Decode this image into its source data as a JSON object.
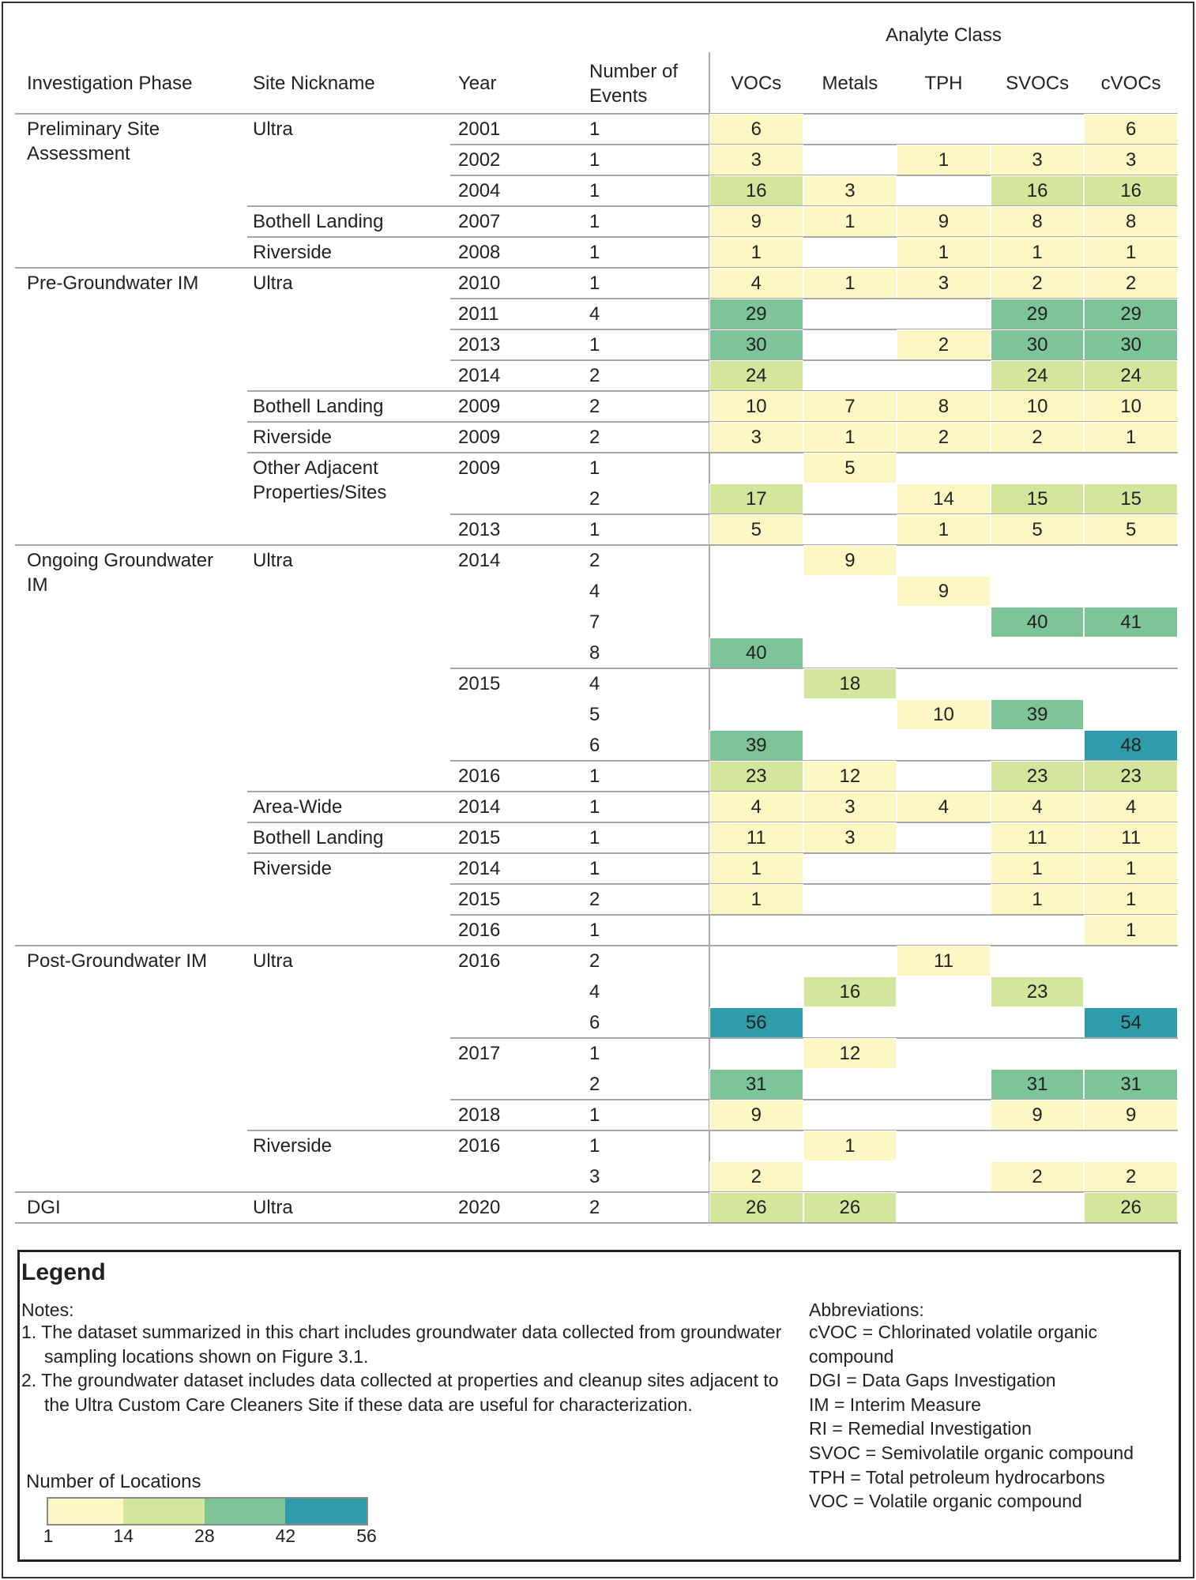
{
  "table": {
    "analyte_group": "Analyte Class",
    "columns": [
      "Investigation Phase",
      "Site Nickname",
      "Year",
      "Number of Events"
    ],
    "analytes": [
      "VOCs",
      "Metals",
      "TPH",
      "SVOCs",
      "cVOCs"
    ],
    "rows": [
      {
        "phase": "Preliminary Site Assessment",
        "site": "Ultra",
        "year": 2001,
        "events": 1,
        "values": [
          6,
          null,
          null,
          null,
          6
        ]
      },
      {
        "phase": null,
        "site": null,
        "year": 2002,
        "events": 1,
        "values": [
          3,
          null,
          1,
          3,
          3
        ]
      },
      {
        "phase": null,
        "site": null,
        "year": 2004,
        "events": 1,
        "values": [
          16,
          3,
          null,
          16,
          16
        ]
      },
      {
        "phase": null,
        "site": "Bothell Landing",
        "year": 2007,
        "events": 1,
        "values": [
          9,
          1,
          9,
          8,
          8
        ]
      },
      {
        "phase": null,
        "site": "Riverside",
        "year": 2008,
        "events": 1,
        "values": [
          1,
          null,
          1,
          1,
          1
        ]
      },
      {
        "phase": "Pre-Groundwater IM",
        "site": "Ultra",
        "year": 2010,
        "events": 1,
        "values": [
          4,
          1,
          3,
          2,
          2
        ]
      },
      {
        "phase": null,
        "site": null,
        "year": 2011,
        "events": 4,
        "values": [
          29,
          null,
          null,
          29,
          29
        ]
      },
      {
        "phase": null,
        "site": null,
        "year": 2013,
        "events": 1,
        "values": [
          30,
          null,
          2,
          30,
          30
        ]
      },
      {
        "phase": null,
        "site": null,
        "year": 2014,
        "events": 2,
        "values": [
          24,
          null,
          null,
          24,
          24
        ]
      },
      {
        "phase": null,
        "site": "Bothell Landing",
        "year": 2009,
        "events": 2,
        "values": [
          10,
          7,
          8,
          10,
          10
        ]
      },
      {
        "phase": null,
        "site": "Riverside",
        "year": 2009,
        "events": 2,
        "values": [
          3,
          1,
          2,
          2,
          1
        ]
      },
      {
        "phase": null,
        "site": "Other Adjacent Properties/Sites",
        "year": 2009,
        "events": 1,
        "values": [
          null,
          5,
          null,
          null,
          null
        ]
      },
      {
        "phase": null,
        "site": null,
        "year": null,
        "events": 2,
        "values": [
          17,
          null,
          14,
          15,
          15
        ]
      },
      {
        "phase": null,
        "site": null,
        "year": 2013,
        "events": 1,
        "values": [
          5,
          null,
          1,
          5,
          5
        ]
      },
      {
        "phase": "Ongoing Groundwater IM",
        "site": "Ultra",
        "year": 2014,
        "events": 2,
        "values": [
          null,
          9,
          null,
          null,
          null
        ]
      },
      {
        "phase": null,
        "site": null,
        "year": null,
        "events": 4,
        "values": [
          null,
          null,
          9,
          null,
          null
        ]
      },
      {
        "phase": null,
        "site": null,
        "year": null,
        "events": 7,
        "values": [
          null,
          null,
          null,
          40,
          41
        ]
      },
      {
        "phase": null,
        "site": null,
        "year": null,
        "events": 8,
        "values": [
          40,
          null,
          null,
          null,
          null
        ]
      },
      {
        "phase": null,
        "site": null,
        "year": 2015,
        "events": 4,
        "values": [
          null,
          18,
          null,
          null,
          null
        ]
      },
      {
        "phase": null,
        "site": null,
        "year": null,
        "events": 5,
        "values": [
          null,
          null,
          10,
          39,
          null
        ]
      },
      {
        "phase": null,
        "site": null,
        "year": null,
        "events": 6,
        "values": [
          39,
          null,
          null,
          null,
          48
        ]
      },
      {
        "phase": null,
        "site": null,
        "year": 2016,
        "events": 1,
        "values": [
          23,
          12,
          null,
          23,
          23
        ]
      },
      {
        "phase": null,
        "site": "Area-Wide",
        "year": 2014,
        "events": 1,
        "values": [
          4,
          3,
          4,
          4,
          4
        ]
      },
      {
        "phase": null,
        "site": "Bothell Landing",
        "year": 2015,
        "events": 1,
        "values": [
          11,
          3,
          null,
          11,
          11
        ]
      },
      {
        "phase": null,
        "site": "Riverside",
        "year": 2014,
        "events": 1,
        "values": [
          1,
          null,
          null,
          1,
          1
        ]
      },
      {
        "phase": null,
        "site": null,
        "year": 2015,
        "events": 2,
        "values": [
          1,
          null,
          null,
          1,
          1
        ]
      },
      {
        "phase": null,
        "site": null,
        "year": 2016,
        "events": 1,
        "values": [
          null,
          null,
          null,
          null,
          1
        ]
      },
      {
        "phase": "Post-Groundwater IM",
        "site": "Ultra",
        "year": 2016,
        "events": 2,
        "values": [
          null,
          null,
          11,
          null,
          null
        ]
      },
      {
        "phase": null,
        "site": null,
        "year": null,
        "events": 4,
        "values": [
          null,
          16,
          null,
          23,
          null
        ]
      },
      {
        "phase": null,
        "site": null,
        "year": null,
        "events": 6,
        "values": [
          56,
          null,
          null,
          null,
          54
        ]
      },
      {
        "phase": null,
        "site": null,
        "year": 2017,
        "events": 1,
        "values": [
          null,
          12,
          null,
          null,
          null
        ]
      },
      {
        "phase": null,
        "site": null,
        "year": null,
        "events": 2,
        "values": [
          31,
          null,
          null,
          31,
          31
        ]
      },
      {
        "phase": null,
        "site": null,
        "year": 2018,
        "events": 1,
        "values": [
          9,
          null,
          null,
          9,
          9
        ]
      },
      {
        "phase": null,
        "site": "Riverside",
        "year": 2016,
        "events": 1,
        "values": [
          null,
          1,
          null,
          null,
          null
        ]
      },
      {
        "phase": null,
        "site": null,
        "year": null,
        "events": 3,
        "values": [
          2,
          null,
          null,
          2,
          2
        ]
      },
      {
        "phase": "DGI",
        "site": "Ultra",
        "year": 2020,
        "events": 2,
        "values": [
          26,
          26,
          null,
          null,
          26
        ]
      }
    ]
  },
  "legend": {
    "title": "Legend",
    "notes_label": "Notes:",
    "notes": [
      "1. The dataset summarized in this chart includes groundwater data collected from groundwater sampling locations shown on Figure 3.1.",
      "2. The groundwater dataset includes data collected at properties and cleanup sites adjacent to the Ultra Custom Care Cleaners Site if these data are useful for characterization."
    ],
    "abbreviations_label": "Abbreviations:",
    "abbreviations": [
      "cVOC = Chlorinated volatile organic compound",
      "DGI = Data Gaps Investigation",
      "IM = Interim Measure",
      "RI = Remedial Investigation",
      "SVOC = Semivolatile organic compound",
      "TPH = Total petroleum hydrocarbons",
      "VOC = Volatile organic compound"
    ],
    "scale": {
      "title": "Number of Locations",
      "ticks": [
        1,
        14,
        28,
        42,
        56
      ],
      "colors": [
        "#fdf8c3",
        "#d4e59c",
        "#7dc599",
        "#2e9ca9"
      ]
    }
  }
}
